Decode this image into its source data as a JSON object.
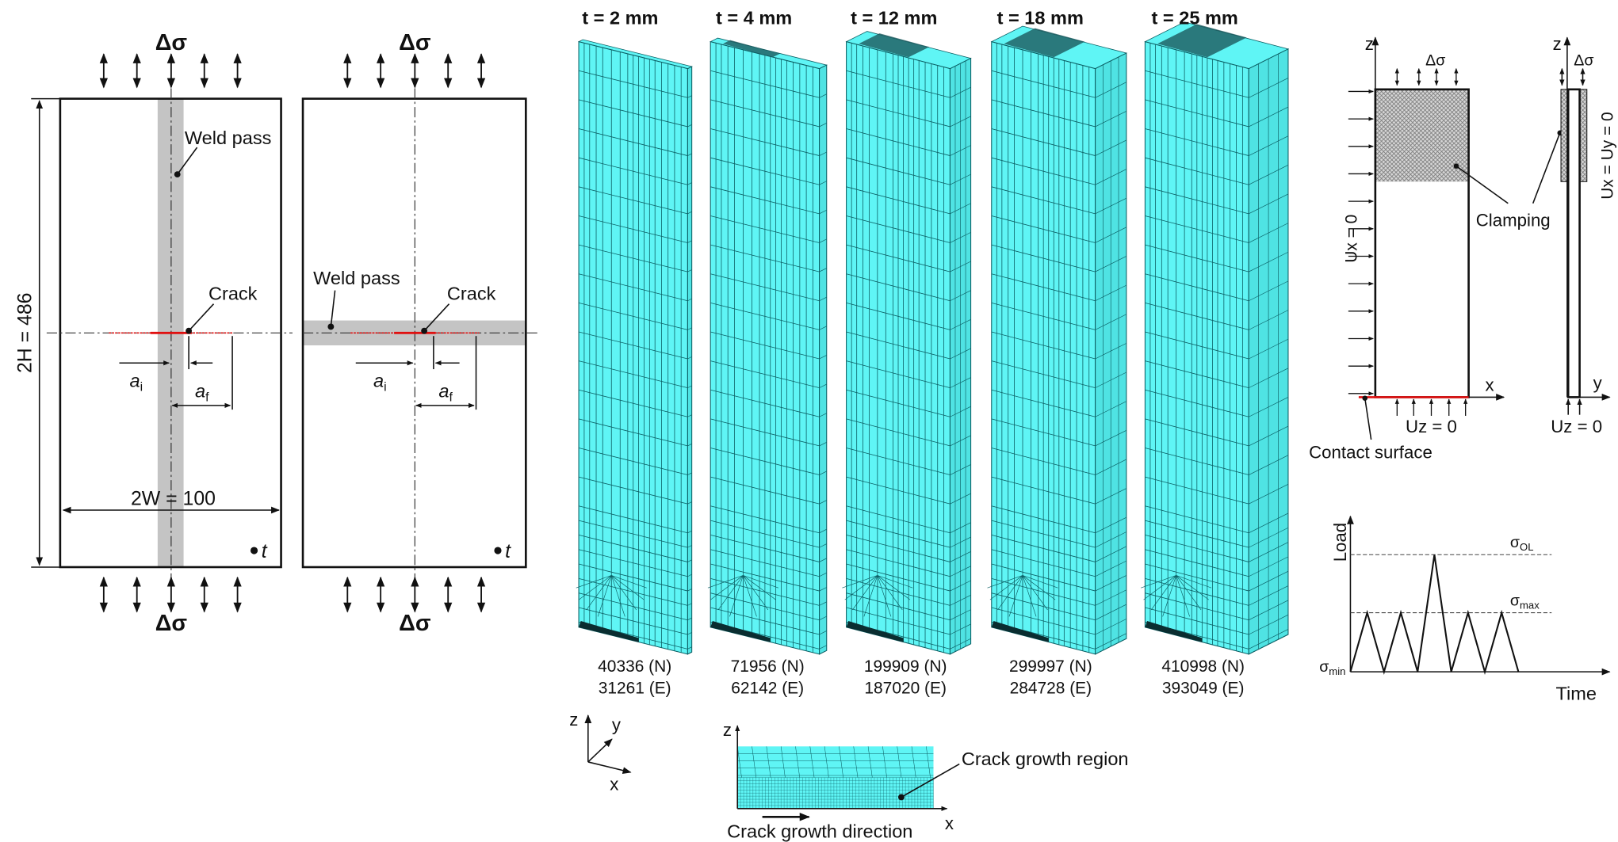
{
  "colors": {
    "mesh": "#5ff5f5",
    "mesh_line": "#0b5e63",
    "weld": "#c4c4c4",
    "crack": "#e01010",
    "hatch": "#bdbdbd"
  },
  "specimens": {
    "stress_label": "Δσ",
    "height_label": "2H = 486",
    "width_label": "2W = 100",
    "weld_label": "Weld pass",
    "crack_label": "Crack",
    "ai_label": "a",
    "ai_sub": "i",
    "af_label": "a",
    "af_sub": "f",
    "thickness_label": "t"
  },
  "meshes": [
    {
      "title": "t = 2 mm",
      "nodes": "40336 (N)",
      "elements": "31261 (E)"
    },
    {
      "title": "t = 4 mm",
      "nodes": "71956 (N)",
      "elements": "62142 (E)"
    },
    {
      "title": "t = 12 mm",
      "nodes": "199909 (N)",
      "elements": "187020 (E)"
    },
    {
      "title": "t = 18 mm",
      "nodes": "299997 (N)",
      "elements": "284728 (E)"
    },
    {
      "title": "t = 25 mm",
      "nodes": "410998 (N)",
      "elements": "393049 (E)"
    }
  ],
  "axes": {
    "x": "x",
    "y": "y",
    "z": "z"
  },
  "crack_region": {
    "region_label": "Crack growth region",
    "direction_label": "Crack growth direction"
  },
  "boundary": {
    "stress_label": "Δσ",
    "ux_label": "Ux = 0",
    "uz_label": "Uz = 0",
    "uxuy_label": "Ux = Uy = 0",
    "clamping_label": "Clamping",
    "contact_label": "Contact surface"
  },
  "load_chart": {
    "ylabel": "Load",
    "xlabel": "Time",
    "sigma_ol": "σ",
    "sigma_ol_sub": "OL",
    "sigma_max": "σ",
    "sigma_max_sub": "max",
    "sigma_min": "σ",
    "sigma_min_sub": "min",
    "cycle_peaks": [
      "max",
      "max",
      "OL",
      "max",
      "max"
    ]
  }
}
